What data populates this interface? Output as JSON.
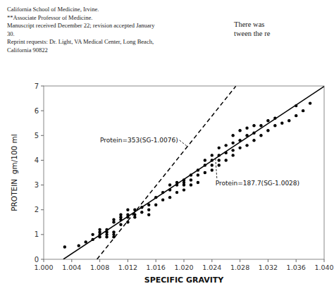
{
  "chart_data": {
    "type": "scatter",
    "x_label": "SPECIFIC GRAVITY",
    "y_label": "PROTEIN  gm/100 ml",
    "xlim": [
      1.0,
      1.04
    ],
    "ylim": [
      0,
      7
    ],
    "xticks": [
      {
        "value": 1.0,
        "label": "1.000"
      },
      {
        "value": 1.004,
        "label": "1.004"
      },
      {
        "value": 1.008,
        "label": "1.008"
      },
      {
        "value": 1.012,
        "label": "1.012"
      },
      {
        "value": 1.016,
        "label": "1.016"
      },
      {
        "value": 1.02,
        "label": "1.020"
      },
      {
        "value": 1.024,
        "label": "1.024"
      },
      {
        "value": 1.028,
        "label": "1.028"
      },
      {
        "value": 1.032,
        "label": "1.032"
      },
      {
        "value": 1.036,
        "label": "1.036"
      },
      {
        "value": 1.04,
        "label": "1.040"
      }
    ],
    "yticks": [
      0,
      1,
      2,
      3,
      4,
      5,
      6,
      7
    ],
    "grid": false,
    "series": [
      {
        "type": "scatter",
        "color": "#000000",
        "marker": "circle",
        "x": [
          1.003,
          1.005,
          1.006,
          1.007,
          1.007,
          1.008,
          1.008,
          1.008,
          1.008,
          1.009,
          1.009,
          1.009,
          1.009,
          1.01,
          1.01,
          1.01,
          1.01,
          1.01,
          1.011,
          1.011,
          1.011,
          1.011,
          1.012,
          1.012,
          1.012,
          1.012,
          1.013,
          1.013,
          1.013,
          1.014,
          1.014,
          1.015,
          1.015,
          1.015,
          1.016,
          1.016,
          1.017,
          1.017,
          1.018,
          1.018,
          1.018,
          1.019,
          1.019,
          1.019,
          1.02,
          1.02,
          1.02,
          1.02,
          1.021,
          1.021,
          1.021,
          1.022,
          1.022,
          1.022,
          1.023,
          1.023,
          1.023,
          1.024,
          1.024,
          1.024,
          1.024,
          1.025,
          1.025,
          1.025,
          1.025,
          1.026,
          1.026,
          1.026,
          1.027,
          1.027,
          1.027,
          1.027,
          1.028,
          1.028,
          1.028,
          1.029,
          1.029,
          1.029,
          1.03,
          1.03,
          1.03,
          1.031,
          1.031,
          1.032,
          1.032,
          1.033,
          1.033,
          1.034,
          1.035,
          1.036,
          1.036,
          1.037,
          1.038
        ],
        "values": [
          0.5,
          0.55,
          0.7,
          0.8,
          1.0,
          0.9,
          1.0,
          1.1,
          1.2,
          0.9,
          1.0,
          1.1,
          1.2,
          0.9,
          1.0,
          1.1,
          1.5,
          1.6,
          1.4,
          1.6,
          1.7,
          1.8,
          1.5,
          1.7,
          1.8,
          2.0,
          1.7,
          1.8,
          2.0,
          1.9,
          2.1,
          1.8,
          2.0,
          2.2,
          2.2,
          2.5,
          2.4,
          2.7,
          2.5,
          2.8,
          3.0,
          2.7,
          3.0,
          3.1,
          2.8,
          3.0,
          3.1,
          3.2,
          3.0,
          3.2,
          3.4,
          3.1,
          3.4,
          3.6,
          3.5,
          3.8,
          4.0,
          3.6,
          3.8,
          4.0,
          4.2,
          3.8,
          4.0,
          4.2,
          4.5,
          4.0,
          4.3,
          4.6,
          4.2,
          4.4,
          4.7,
          5.0,
          4.5,
          4.8,
          5.2,
          4.6,
          5.0,
          5.3,
          4.8,
          5.1,
          5.4,
          5.0,
          5.4,
          5.2,
          5.6,
          5.4,
          5.7,
          5.5,
          5.6,
          5.8,
          6.2,
          6.0,
          6.3
        ]
      },
      {
        "type": "line",
        "color": "#000000",
        "line_style": "solid",
        "x": [
          1.0028,
          1.04
        ],
        "values": [
          0,
          6.98244
        ]
      },
      {
        "type": "line",
        "color": "#000000",
        "line_style": "dashed",
        "x": [
          1.0076,
          1.0274
        ],
        "values": [
          0,
          6.9894
        ]
      }
    ],
    "annotations": [
      {
        "text": "Protein=353(SG-1.0076)",
        "x": 1.0205,
        "y": 4.5537
      },
      {
        "text": "Protein=187.7(SG-1.0028)",
        "x": 1.0245,
        "y": 4.07309
      },
      {
        "text": "California School of Medicine, Irvine."
      },
      {
        "text": "**Associate Professor of Medicine."
      },
      {
        "text": "Manuscript received December 22; revision accepted January"
      },
      {
        "text": "30."
      },
      {
        "text": "Reprint requests: Dr. Light, VA Medical Center, Long Beach,"
      },
      {
        "text": "California 90822"
      },
      {
        "text": "There was\ntween the re"
      }
    ]
  }
}
